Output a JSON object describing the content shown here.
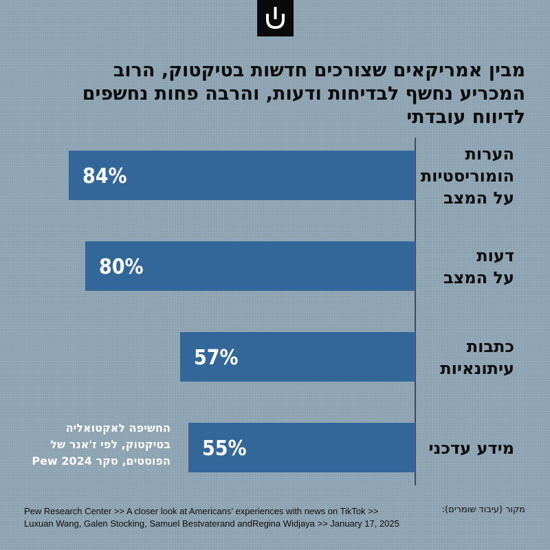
{
  "title": "מבין אמריקאים שצורכים חדשות בטיקטוק, הרוב המכריע נחשף לבדיחות ודעות, והרבה פחות נחשפים לדיווח עובדתי",
  "note": "החשיפה לאקטואליה בטיקטוק, לפי ז'אנר של הפוסטים, סקר Pew 2024",
  "source_label": "מקור (עיבוד שומרים):",
  "credit_line1": "Pew Research Center >> A closer look at Americans’ experiences with news on TikTok >>",
  "credit_line2": "Luxuan Wang, Galen Stocking, Samuel Bestvaterand andRegina Widjaya >> January 17, 2025",
  "colors": {
    "background": "#8fa4b3",
    "bar": "#336699",
    "text": "#0c0c0c",
    "label": "#ffffff"
  },
  "chart_data": {
    "type": "bar",
    "orientation": "horizontal",
    "categories": [
      [
        "הערות",
        "הומוריסטיות",
        "על המצב"
      ],
      [
        "דעות",
        "על המצב"
      ],
      [
        "כתבות",
        "עיתונאיות"
      ],
      [
        "מידע עדכני"
      ]
    ],
    "values": [
      84,
      80,
      57,
      55
    ],
    "value_labels": [
      "84%",
      "80%",
      "57%",
      "55%"
    ],
    "unit": "%"
  }
}
